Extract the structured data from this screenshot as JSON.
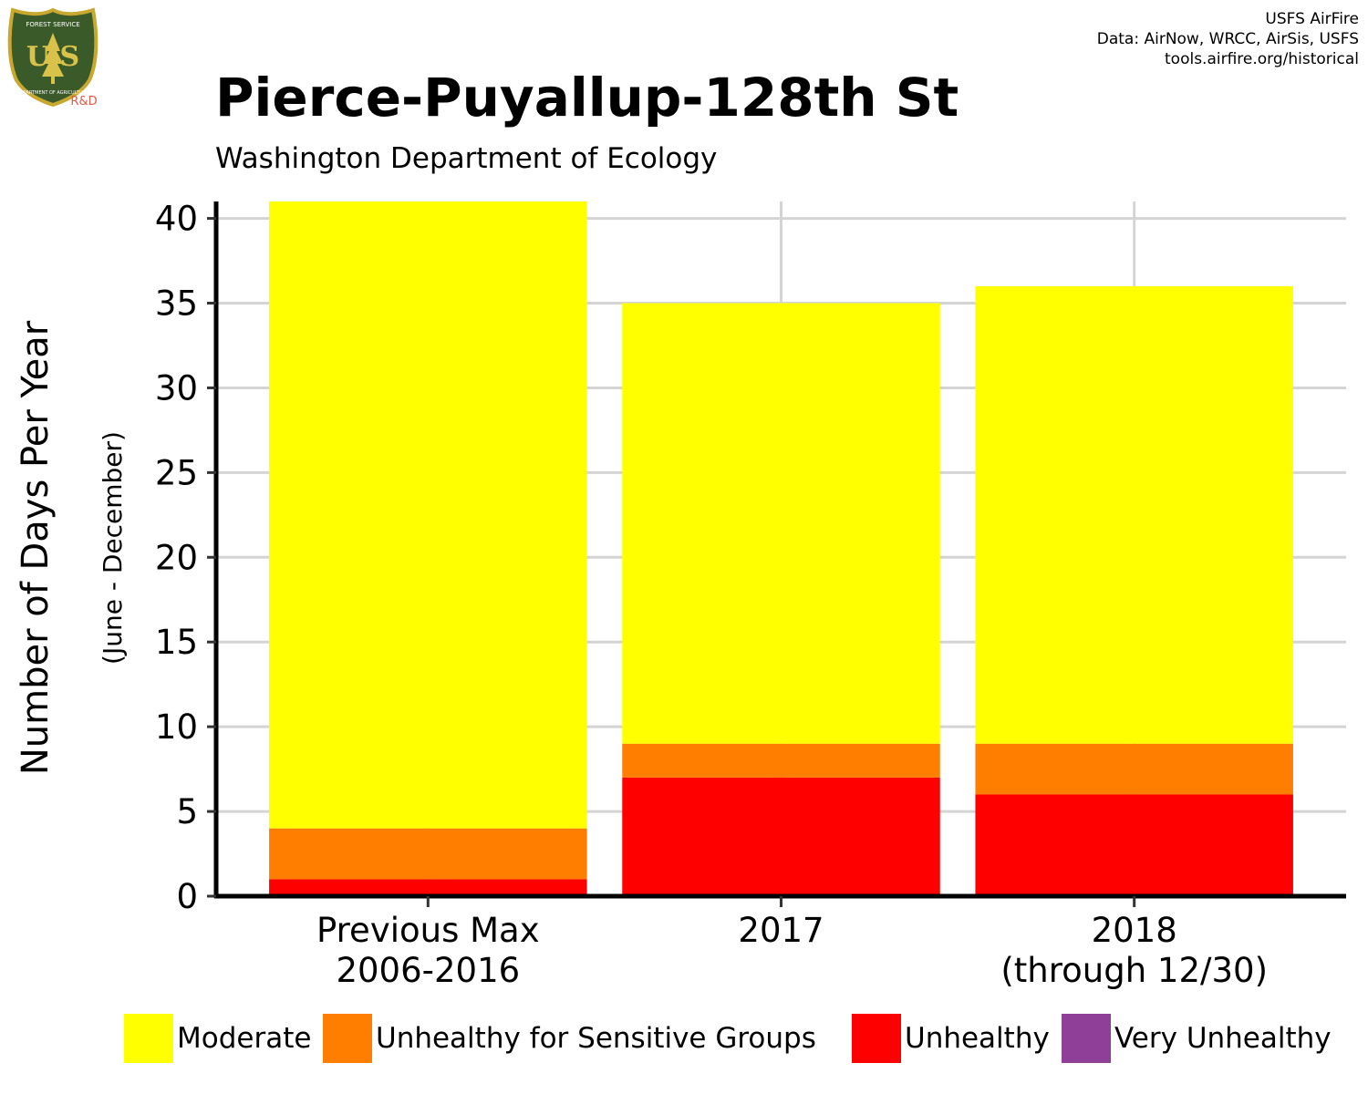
{
  "header": {
    "title": "Pierce-Puyallup-128th St",
    "subtitle": "Washington Department of Ecology",
    "credits": [
      "USFS AirFire",
      "Data: AirNow, WRCC, AirSis, USFS",
      "tools.airfire.org/historical"
    ]
  },
  "logo": {
    "top_text": "FOREST SERVICE",
    "letters": "U S",
    "bottom_text": "DEPARTMENT OF AGRICULTURE",
    "tag": "R&D",
    "colors": {
      "shield": "#3a5a2a",
      "border": "#c8a82e",
      "tag": "#e05a4a"
    }
  },
  "chart_data": {
    "type": "bar",
    "stacked": true,
    "title": "Pierce-Puyallup-128th St",
    "subtitle": "Washington Department of Ecology",
    "xlabel": "",
    "ylabel": "Number of Days Per Year",
    "ylabel_sub": "(June - December)",
    "categories": [
      [
        "Previous Max",
        "2006-2016"
      ],
      [
        "2017"
      ],
      [
        "2018",
        "(through 12/30)"
      ]
    ],
    "yticks": [
      0,
      5,
      10,
      15,
      20,
      25,
      30,
      35,
      40
    ],
    "ylim": [
      0,
      41
    ],
    "grid": true,
    "legend_position": "bottom",
    "series": [
      {
        "name": "Unhealthy",
        "color": "#ff0000",
        "values": [
          1,
          7,
          6
        ]
      },
      {
        "name": "Unhealthy for Sensitive Groups",
        "color": "#ff7e00",
        "values": [
          3,
          2,
          3
        ]
      },
      {
        "name": "Moderate",
        "color": "#ffff00",
        "values": [
          37,
          26,
          27
        ]
      }
    ],
    "legend": [
      {
        "name": "Moderate",
        "color": "#ffff00"
      },
      {
        "name": "Unhealthy for Sensitive Groups",
        "color": "#ff7e00"
      },
      {
        "name": "Unhealthy",
        "color": "#ff0000"
      },
      {
        "name": "Very Unhealthy",
        "color": "#8f3f97"
      }
    ]
  }
}
